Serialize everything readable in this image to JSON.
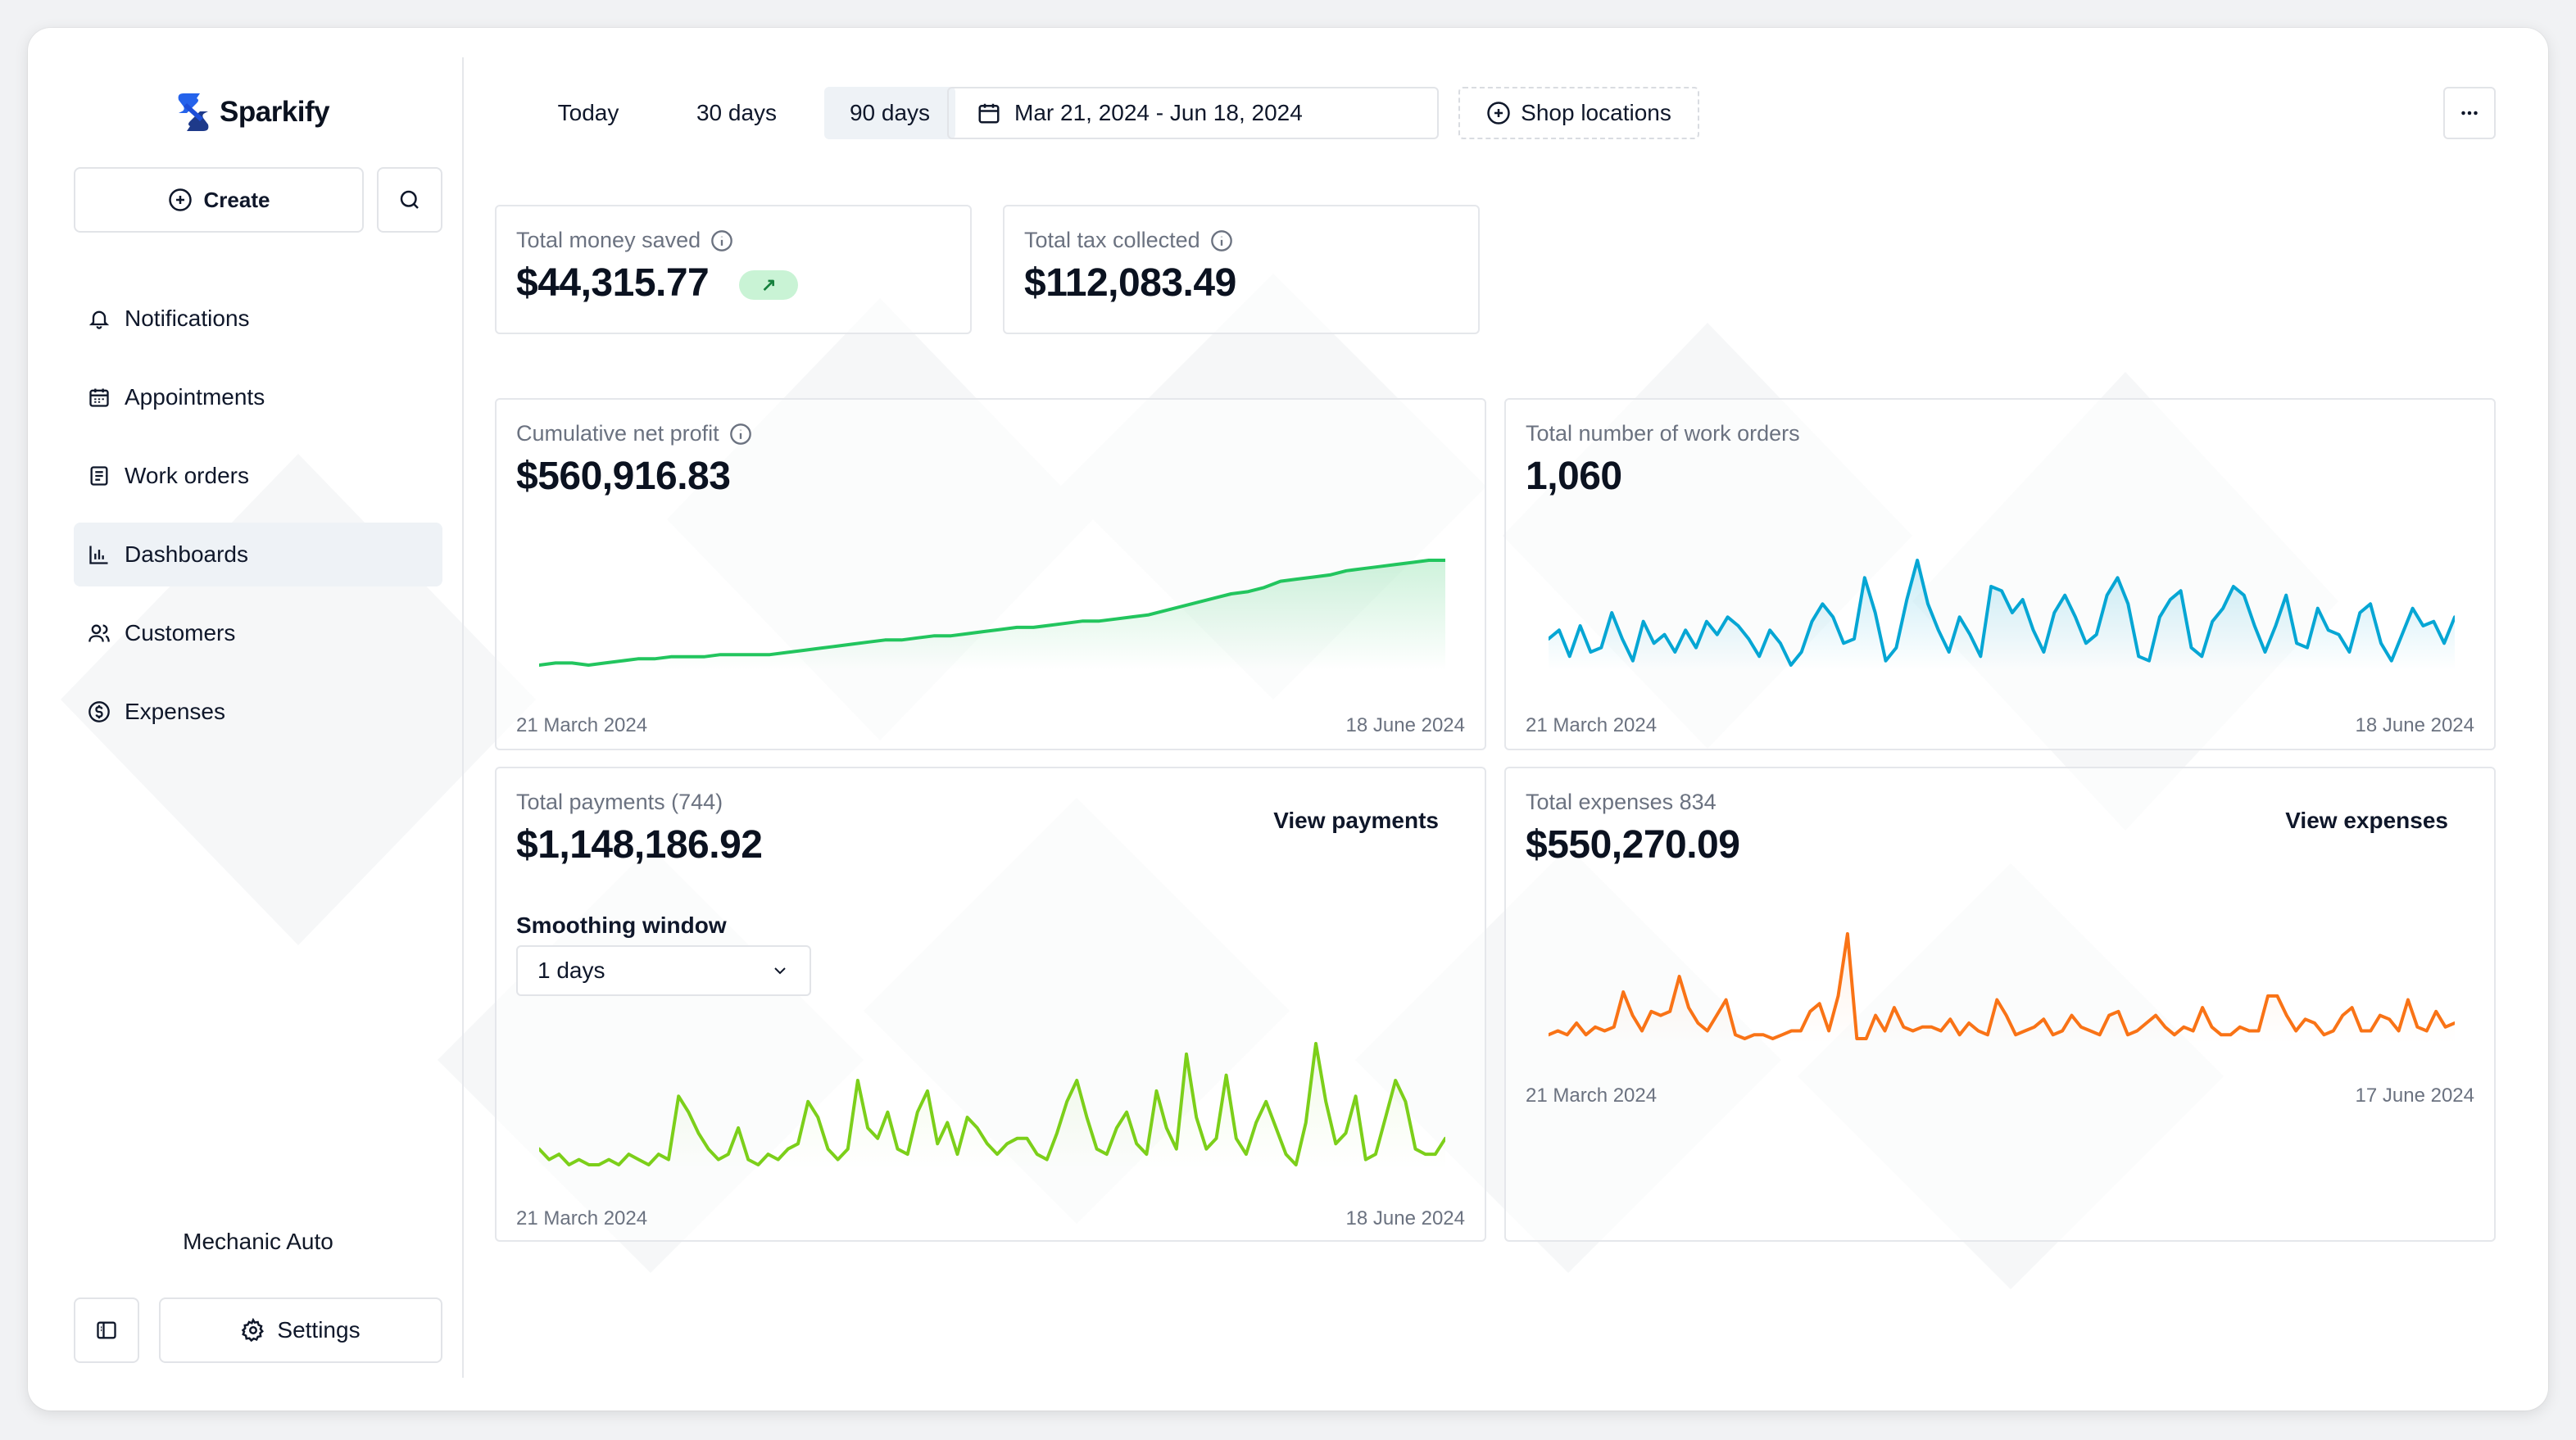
{
  "app": {
    "name": "Sparkify"
  },
  "sidebar": {
    "create_label": "Create",
    "items": [
      {
        "label": "Notifications",
        "icon": "bell-icon"
      },
      {
        "label": "Appointments",
        "icon": "calendar-icon"
      },
      {
        "label": "Work orders",
        "icon": "document-icon"
      },
      {
        "label": "Dashboards",
        "icon": "bar-chart-icon",
        "active": true
      },
      {
        "label": "Customers",
        "icon": "users-icon"
      },
      {
        "label": "Expenses",
        "icon": "dollar-icon"
      }
    ],
    "shop_name": "Mechanic Auto",
    "settings_label": "Settings"
  },
  "toolbar": {
    "ranges": [
      "Today",
      "30 days",
      "90 days"
    ],
    "active_range": "90 days",
    "date_range": "Mar 21, 2024 - Jun 18, 2024",
    "shop_locations_label": "Shop locations"
  },
  "stats": {
    "money_saved": {
      "label": "Total money saved",
      "value": "$44,315.77",
      "trend": "↗"
    },
    "tax_collected": {
      "label": "Total tax collected",
      "value": "$112,083.49"
    }
  },
  "cards": {
    "net_profit": {
      "label": "Cumulative net profit",
      "value": "$560,916.83",
      "start": "21 March 2024",
      "end": "18 June 2024"
    },
    "work_orders": {
      "label": "Total number of work orders",
      "value": "1,060",
      "start": "21 March 2024",
      "end": "18 June 2024"
    },
    "payments": {
      "label": "Total payments (744)",
      "value": "$1,148,186.92",
      "link": "View payments",
      "smoothing_label": "Smoothing window",
      "smoothing_value": "1 days",
      "start": "21 March 2024",
      "end": "18 June 2024"
    },
    "expenses": {
      "label": "Total expenses 834",
      "value": "$550,270.09",
      "link": "View expenses",
      "start": "21 March 2024",
      "end": "17 June 2024"
    }
  },
  "colors": {
    "brand": "#1d4ed8",
    "profit": "#22c55e",
    "work_orders": "#06a6d4",
    "payments": "#7ccf1a",
    "expenses": "#f97316"
  },
  "chart_data": [
    {
      "type": "area",
      "title": "Cumulative net profit",
      "x_range": [
        "21 March 2024",
        "18 June 2024"
      ],
      "values": [
        0,
        1,
        1,
        0,
        1,
        2,
        3,
        3,
        4,
        4,
        4,
        5,
        5,
        5,
        5,
        6,
        7,
        8,
        9,
        10,
        11,
        12,
        12,
        13,
        14,
        14,
        15,
        16,
        17,
        18,
        18,
        19,
        20,
        21,
        21,
        22,
        23,
        24,
        26,
        28,
        30,
        32,
        34,
        35,
        37,
        40,
        41,
        42,
        43,
        45,
        46,
        47,
        48,
        49,
        50,
        50
      ]
    },
    {
      "type": "area",
      "title": "Total number of work orders",
      "x_range": [
        "21 March 2024",
        "18 June 2024"
      ],
      "values": [
        12,
        14,
        8,
        15,
        9,
        10,
        18,
        12,
        7,
        16,
        11,
        13,
        9,
        14,
        10,
        16,
        13,
        17,
        15,
        12,
        8,
        14,
        11,
        6,
        9,
        16,
        20,
        17,
        11,
        12,
        26,
        18,
        7,
        10,
        21,
        30,
        20,
        14,
        9,
        17,
        13,
        8,
        24,
        23,
        18,
        21,
        14,
        9,
        18,
        22,
        17,
        11,
        13,
        22,
        26,
        20,
        8,
        7,
        17,
        21,
        23,
        10,
        8,
        16,
        19,
        24,
        22,
        15,
        9,
        15,
        22,
        11,
        10,
        19,
        14,
        13,
        9,
        18,
        20,
        11,
        7,
        13,
        19,
        15,
        16,
        11,
        17
      ]
    },
    {
      "type": "line",
      "title": "Total payments",
      "x_range": [
        "21 March 2024",
        "18 June 2024"
      ],
      "values": [
        8,
        6,
        7,
        5,
        6,
        5,
        5,
        6,
        5,
        7,
        6,
        5,
        7,
        6,
        18,
        15,
        11,
        8,
        6,
        7,
        12,
        6,
        5,
        7,
        6,
        8,
        9,
        17,
        14,
        8,
        6,
        8,
        21,
        12,
        10,
        15,
        8,
        7,
        15,
        19,
        9,
        13,
        7,
        14,
        12,
        9,
        7,
        9,
        10,
        10,
        7,
        6,
        11,
        17,
        21,
        14,
        8,
        7,
        12,
        15,
        9,
        7,
        19,
        12,
        8,
        26,
        14,
        8,
        10,
        22,
        10,
        7,
        13,
        17,
        12,
        7,
        5,
        13,
        28,
        17,
        9,
        11,
        18,
        6,
        7,
        14,
        21,
        17,
        8,
        7,
        7,
        10
      ]
    },
    {
      "type": "line",
      "title": "Total expenses",
      "x_range": [
        "21 March 2024",
        "17 June 2024"
      ],
      "values": [
        3,
        4,
        3,
        6,
        3,
        5,
        4,
        5,
        14,
        8,
        4,
        9,
        8,
        9,
        18,
        10,
        6,
        4,
        8,
        12,
        3,
        2,
        3,
        3,
        2,
        3,
        4,
        4,
        9,
        11,
        4,
        13,
        29,
        2,
        2,
        8,
        4,
        10,
        5,
        4,
        5,
        5,
        4,
        7,
        3,
        6,
        4,
        3,
        12,
        8,
        3,
        4,
        5,
        7,
        3,
        4,
        8,
        5,
        4,
        3,
        8,
        9,
        3,
        4,
        6,
        8,
        5,
        3,
        5,
        4,
        10,
        5,
        3,
        3,
        5,
        4,
        4,
        13,
        13,
        8,
        4,
        7,
        6,
        3,
        4,
        8,
        10,
        4,
        4,
        8,
        7,
        4,
        12,
        5,
        4,
        9,
        5,
        6
      ]
    }
  ]
}
